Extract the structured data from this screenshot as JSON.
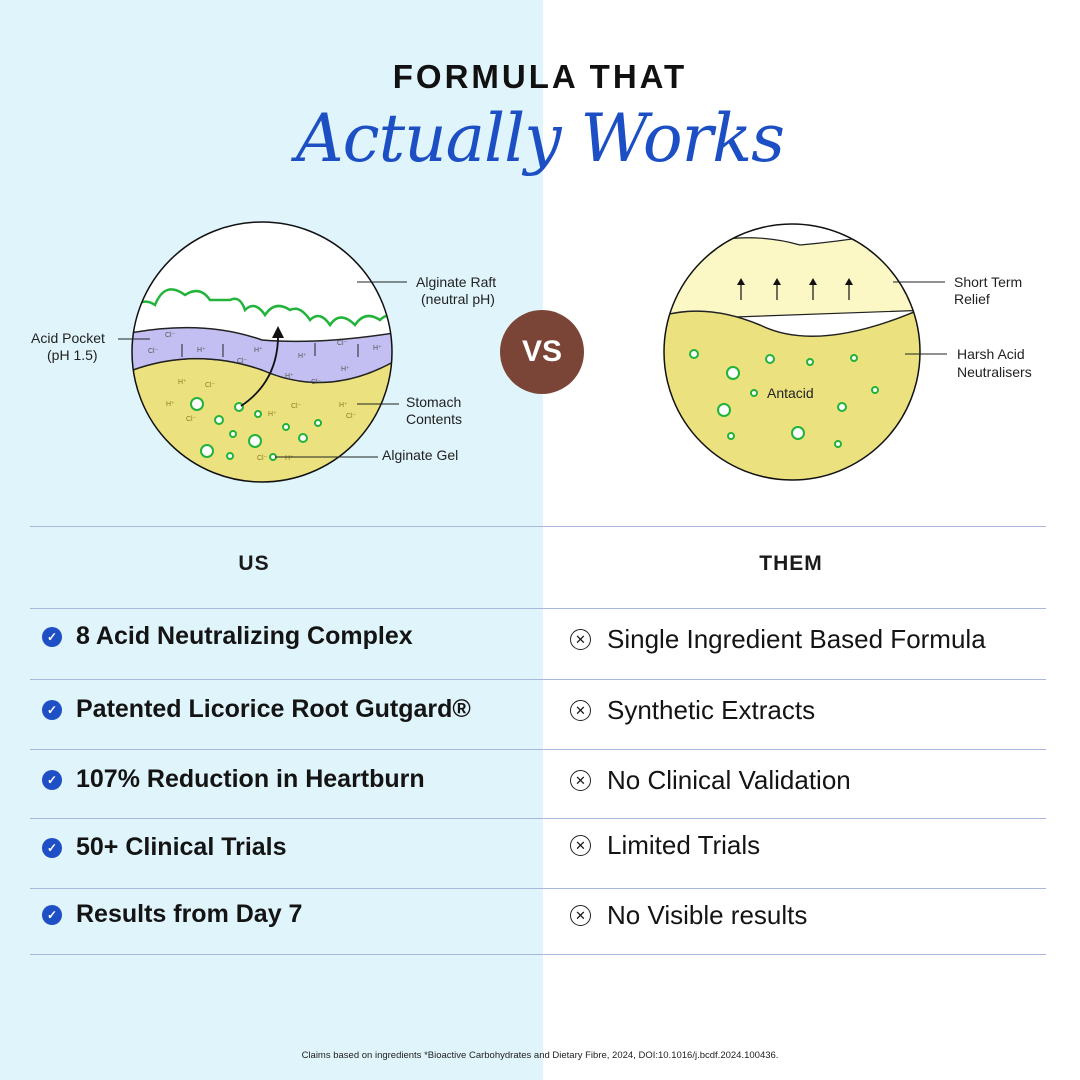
{
  "title": {
    "line1": "FORMULA THAT",
    "line2": "Actually Works"
  },
  "vs": "VS",
  "us_diagram": {
    "labels": {
      "raft_1": "Alginate Raft",
      "raft_2": "(neutral pH)",
      "pocket_1": "Acid Pocket",
      "pocket_2": "(pH 1.5)",
      "stomach_1": "Stomach",
      "stomach_2": "Contents",
      "gel": "Alginate Gel"
    },
    "ions": {
      "h": "H⁺",
      "cl": "Cl⁻"
    },
    "colors": {
      "pocket": "#c3bff2",
      "stomach": "#ebe27f",
      "foam": "#22b33a"
    }
  },
  "them_diagram": {
    "labels": {
      "relief_1": "Short Term",
      "relief_2": "Relief",
      "harsh_1": "Harsh Acid",
      "harsh_2": "Neutralisers",
      "antacid": "Antacid"
    },
    "colors": {
      "top": "#fbf8c6",
      "bottom": "#ebe27f"
    }
  },
  "table": {
    "us_header": "US",
    "them_header": "THEM",
    "rows": [
      {
        "us": "8 Acid Neutralizing Complex",
        "them": "Single Ingredient Based Formula"
      },
      {
        "us": "Patented Licorice Root Gutgard®",
        "them": "Synthetic Extracts"
      },
      {
        "us": "107% Reduction in Heartburn",
        "them": "No Clinical Validation"
      },
      {
        "us": "50+ Clinical Trials",
        "them": "Limited Trials"
      },
      {
        "us": "Results from Day 7",
        "them": "No Visible results"
      }
    ]
  },
  "footnote": "Claims based on ingredients *Bioactive Carbohydrates and Dietary Fibre, 2024, DOI:10.1016/j.bcdf.2024.100436.",
  "accent": "#1d4fc4"
}
